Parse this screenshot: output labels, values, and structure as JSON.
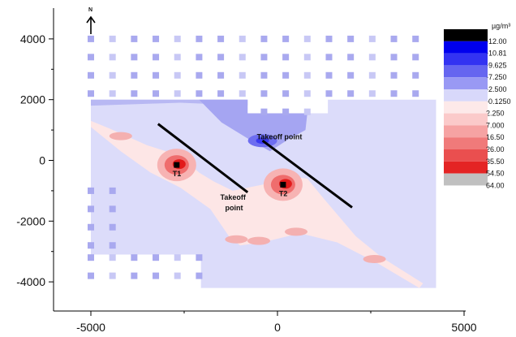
{
  "chart_data": {
    "type": "heatmap",
    "title": "",
    "xlabel": "",
    "ylabel": "",
    "xlim": [
      -5500,
      5000
    ],
    "ylim": [
      -4700,
      5000
    ],
    "x_ticks": [
      -5000,
      0,
      5000
    ],
    "x_tick_labels": [
      "-5000",
      "0",
      "5000"
    ],
    "y_ticks": [
      -4000,
      -2000,
      0,
      2000,
      4000
    ],
    "y_tick_labels": [
      "-4000",
      "-2000",
      "0",
      "2000",
      "4000"
    ],
    "grid": false,
    "north_arrow": "N",
    "legend": {
      "unit": "µg/m³",
      "placement": "right",
      "entries": [
        {
          "label": "-12.00",
          "color": "#000000"
        },
        {
          "label": "-10.81",
          "color": "#0000ee"
        },
        {
          "label": "-9.625",
          "color": "#3333f2"
        },
        {
          "label": "-7.250",
          "color": "#6666f0"
        },
        {
          "label": "-2.500",
          "color": "#9999f4"
        },
        {
          "label": "-0.1250",
          "color": "#d8d8fa"
        },
        {
          "label": "2.250",
          "color": "#fde9e9"
        },
        {
          "label": "7.000",
          "color": "#fbcaca"
        },
        {
          "label": "16.50",
          "color": "#f6a3a3"
        },
        {
          "label": "26.00",
          "color": "#f07a7a"
        },
        {
          "label": "35.50",
          "color": "#ea4f4f"
        },
        {
          "label": "54.50",
          "color": "#e42424"
        },
        {
          "label": "64.00",
          "color": "#c0c0c0"
        }
      ]
    },
    "annotations": [
      {
        "text": "T1",
        "x": -2700,
        "y": -150
      },
      {
        "text": "T2",
        "x": 150,
        "y": -800
      },
      {
        "text": "Takeoff point",
        "x": 100,
        "y": 750
      },
      {
        "text": "Takeoff point",
        "x": -750,
        "y": -1300
      }
    ],
    "runway_lines": [
      {
        "x1": -3200,
        "y1": 1200,
        "x2": -800,
        "y2": -1050
      },
      {
        "x1": -400,
        "y1": 650,
        "x2": 2000,
        "y2": -1550
      }
    ],
    "markers": [
      {
        "name": "T1",
        "x": -2700,
        "y": -150
      },
      {
        "name": "T2",
        "x": 150,
        "y": -800
      }
    ],
    "hotspots": [
      {
        "x": -2700,
        "y": -150,
        "value": 54.5
      },
      {
        "x": 150,
        "y": -800,
        "value": 54.5
      }
    ],
    "cold_spot": {
      "x": -400,
      "y": 650,
      "value": -7.25
    }
  }
}
